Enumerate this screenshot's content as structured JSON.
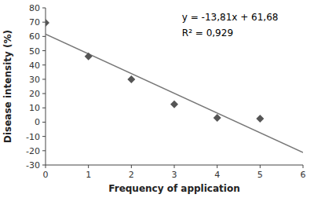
{
  "chart_data": {
    "type": "scatter",
    "x_label": "Frequency of application",
    "y_label": "Disease intensity (%)",
    "xlim": [
      0,
      6
    ],
    "ylim": [
      -30,
      80
    ],
    "xticks": [
      0,
      1,
      2,
      3,
      4,
      5,
      6
    ],
    "yticks": [
      -30,
      -20,
      -10,
      0,
      10,
      20,
      30,
      40,
      50,
      60,
      70,
      80
    ],
    "grid": false,
    "annotations": [
      "y = -13,81x + 61,68",
      "R² = 0,929"
    ],
    "series": [
      {
        "type": "scatter",
        "color": "#555555",
        "marker": "diamond",
        "x": [
          0,
          1,
          2,
          3,
          4,
          5
        ],
        "values": [
          69.5,
          46,
          30,
          12.5,
          3,
          2.5
        ]
      },
      {
        "type": "line",
        "color": "#777777",
        "line_style": "solid",
        "x": [
          0,
          6
        ],
        "values": [
          61.68,
          -21.18
        ]
      }
    ]
  }
}
